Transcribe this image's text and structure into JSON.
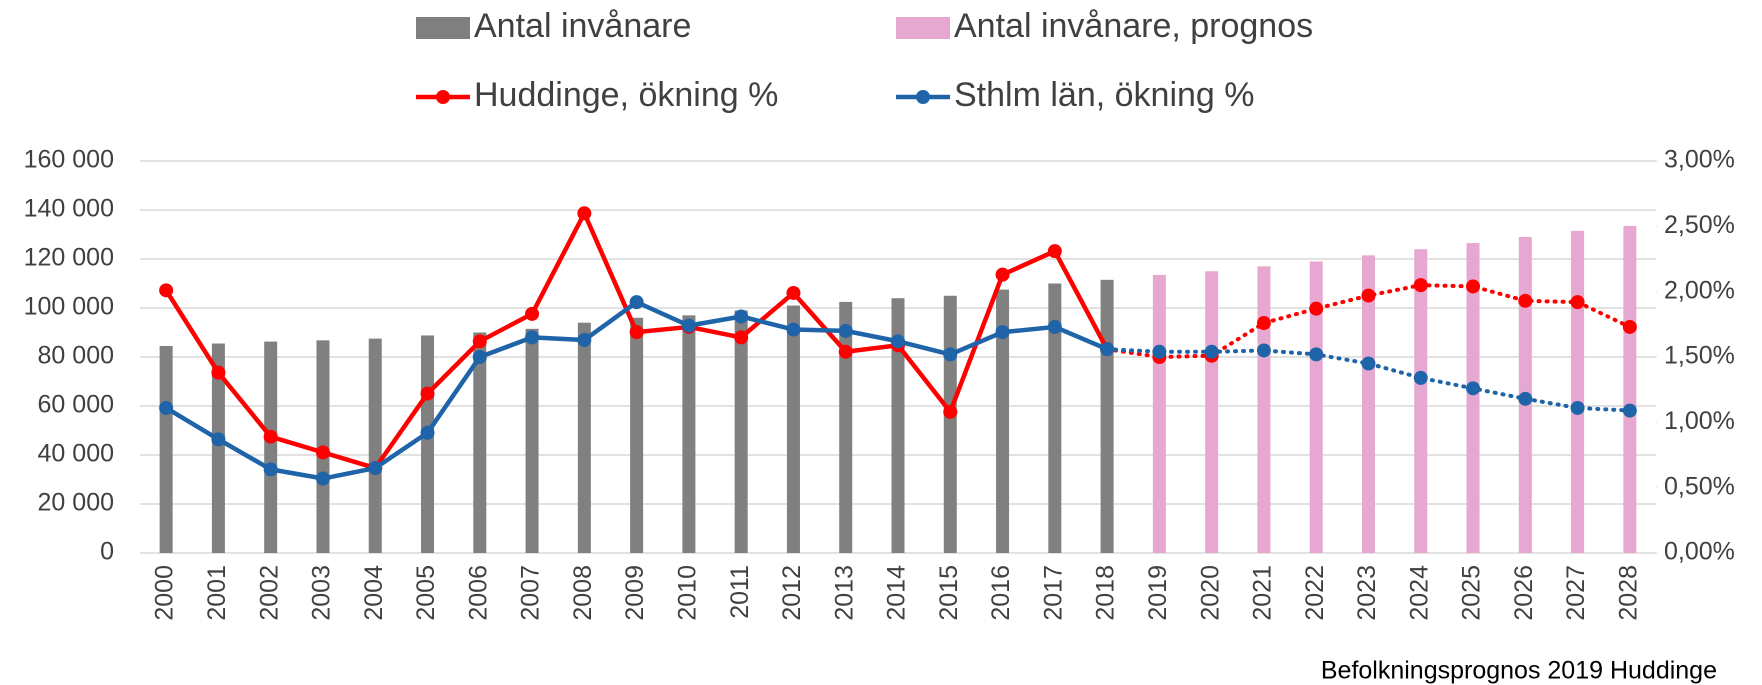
{
  "chart_data": {
    "type": "bar_line",
    "categories": [
      "2000",
      "2001",
      "2002",
      "2003",
      "2004",
      "2005",
      "2006",
      "2007",
      "2008",
      "2009",
      "2010",
      "2011",
      "2012",
      "2013",
      "2014",
      "2015",
      "2016",
      "2017",
      "2018",
      "2019",
      "2020",
      "2021",
      "2022",
      "2023",
      "2024",
      "2025",
      "2026",
      "2027",
      "2028"
    ],
    "series": [
      {
        "name": "Antal invånare",
        "type": "bar",
        "color": "#808080",
        "values": [
          84500,
          85500,
          86300,
          86800,
          87500,
          88800,
          90000,
          91500,
          94000,
          96000,
          97000,
          99000,
          101000,
          102500,
          104000,
          105000,
          107500,
          110000,
          111500,
          null,
          null,
          null,
          null,
          null,
          null,
          null,
          null,
          null,
          null
        ]
      },
      {
        "name": "Antal invånare, prognos",
        "type": "bar",
        "color": "#e6a8d0",
        "values": [
          null,
          null,
          null,
          null,
          null,
          null,
          null,
          null,
          null,
          null,
          null,
          null,
          null,
          null,
          null,
          null,
          null,
          null,
          null,
          113500,
          115000,
          117000,
          119000,
          121500,
          124000,
          126500,
          129000,
          131500,
          133500
        ]
      },
      {
        "name": "Huddinge, ökning %",
        "type": "line",
        "axis": "y2",
        "color": "#ff0000",
        "values": [
          2.01,
          1.38,
          0.89,
          0.77,
          0.65,
          1.22,
          1.62,
          1.83,
          2.6,
          1.69,
          1.73,
          1.65,
          1.99,
          1.54,
          1.59,
          1.08,
          2.13,
          2.31,
          1.56,
          1.5,
          1.51,
          1.76,
          1.87,
          1.97,
          2.05,
          2.04,
          1.93,
          1.92,
          1.73
        ]
      },
      {
        "name": "Sthlm län, ökning %",
        "type": "line",
        "axis": "y2",
        "color": "#1f63a8",
        "values": [
          1.11,
          0.87,
          0.64,
          0.57,
          0.65,
          0.92,
          1.5,
          1.65,
          1.63,
          1.92,
          1.74,
          1.81,
          1.71,
          1.7,
          1.62,
          1.52,
          1.69,
          1.73,
          1.56,
          1.54,
          1.54,
          1.55,
          1.52,
          1.45,
          1.34,
          1.26,
          1.18,
          1.11,
          1.09
        ]
      }
    ],
    "ylim": [
      0,
      160000
    ],
    "yticks": [
      0,
      {
        "value": 20000,
        "label": "20 000"
      },
      {
        "value": 40000,
        "label": "40 000"
      },
      {
        "value": 60000,
        "label": "60 000"
      },
      {
        "value": 80000,
        "label": "80 000"
      },
      {
        "value": 100000,
        "label": "100 000"
      },
      {
        "value": 120000,
        "label": "120 000"
      },
      {
        "value": 140000,
        "label": "140 000"
      },
      {
        "value": 160000,
        "label": "160 000"
      }
    ],
    "y2lim": [
      0,
      3
    ],
    "y2ticks": [
      {
        "value": 0,
        "label": "0,00%"
      },
      {
        "value": 0.5,
        "label": "0,50%"
      },
      {
        "value": 1,
        "label": "1,00%"
      },
      {
        "value": 1.5,
        "label": "1,50%"
      },
      {
        "value": 2,
        "label": "2,00%"
      },
      {
        "value": 2.5,
        "label": "2,50%"
      },
      {
        "value": 3,
        "label": "3,00%"
      }
    ],
    "grid": true,
    "legend": "top",
    "annotation": "Befolkningsprognos 2019 Huddinge"
  }
}
